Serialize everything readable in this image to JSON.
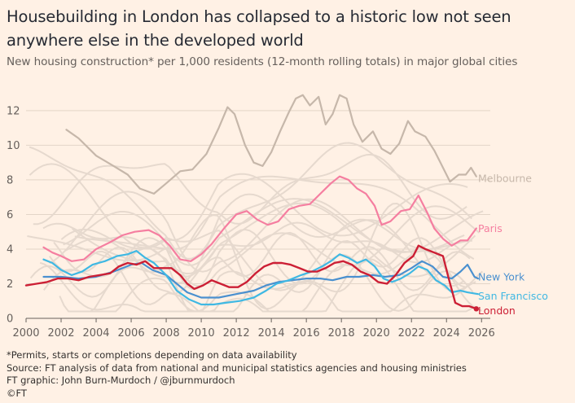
{
  "title": "Housebuilding in London has collapsed to a historic low not seen anywhere else in the developed world",
  "subtitle": "New housing construction* per 1,000 residents (12-month rolling totals) in major global cities",
  "footnotes": {
    "note": "*Permits, starts or completions depending on data availability",
    "source": "Source: FT analysis of data from national and municipal statistics agencies and housing ministries",
    "credit": "FT graphic: John Burn-Murdoch / @jburnmurdoch",
    "copyright": "©FT"
  },
  "colors": {
    "background": "#fff1e5",
    "other_cities": "#e6d9ce",
    "melbourne": "#c6b7aa",
    "paris": "#f57ea0",
    "new_york": "#4a90cf",
    "san_francisco": "#3fb8e3",
    "london": "#cc1f35"
  },
  "chart_data": {
    "type": "line",
    "ylim": [
      0,
      13.5
    ],
    "xlim": [
      2000,
      2026.5
    ],
    "y_ticks": [
      "0",
      "2",
      "4",
      "6",
      "8",
      "10",
      "12"
    ],
    "x_ticks": [
      "2000",
      "2002",
      "2004",
      "2006",
      "2008",
      "2010",
      "2012",
      "2014",
      "2016",
      "2018",
      "2020",
      "2022",
      "2024",
      "2026"
    ],
    "grid": "horizontal",
    "series": [
      {
        "name": "Melbourne",
        "color": "#c6b7aa",
        "width": 2.2,
        "points": [
          [
            2002.3,
            10.9
          ],
          [
            2003,
            10.4
          ],
          [
            2004,
            9.4
          ],
          [
            2005,
            8.8
          ],
          [
            2005.8,
            8.3
          ],
          [
            2006.5,
            7.5
          ],
          [
            2007.3,
            7.2
          ],
          [
            2008,
            7.8
          ],
          [
            2008.8,
            8.5
          ],
          [
            2009.5,
            8.6
          ],
          [
            2010.3,
            9.5
          ],
          [
            2011,
            11.0
          ],
          [
            2011.5,
            12.2
          ],
          [
            2011.9,
            11.8
          ],
          [
            2012.5,
            10.0
          ],
          [
            2013,
            9.0
          ],
          [
            2013.5,
            8.8
          ],
          [
            2014,
            9.6
          ],
          [
            2014.5,
            10.8
          ],
          [
            2015,
            11.9
          ],
          [
            2015.4,
            12.7
          ],
          [
            2015.8,
            12.9
          ],
          [
            2016.2,
            12.3
          ],
          [
            2016.7,
            12.8
          ],
          [
            2017.1,
            11.2
          ],
          [
            2017.5,
            11.8
          ],
          [
            2017.9,
            12.9
          ],
          [
            2018.3,
            12.7
          ],
          [
            2018.7,
            11.2
          ],
          [
            2019.2,
            10.2
          ],
          [
            2019.8,
            10.8
          ],
          [
            2020.3,
            9.8
          ],
          [
            2020.8,
            9.5
          ],
          [
            2021.3,
            10.1
          ],
          [
            2021.8,
            11.4
          ],
          [
            2022.2,
            10.8
          ],
          [
            2022.8,
            10.5
          ],
          [
            2023.3,
            9.7
          ],
          [
            2023.7,
            8.9
          ],
          [
            2024.2,
            7.9
          ],
          [
            2024.7,
            8.3
          ],
          [
            2025.1,
            8.3
          ],
          [
            2025.4,
            8.7
          ],
          [
            2025.7,
            8.2
          ]
        ]
      },
      {
        "name": "Paris",
        "color": "#f57ea0",
        "width": 2.2,
        "points": [
          [
            2001,
            4.1
          ],
          [
            2001.5,
            3.8
          ],
          [
            2002,
            3.6
          ],
          [
            2002.6,
            3.3
          ],
          [
            2003.3,
            3.4
          ],
          [
            2004,
            4.0
          ],
          [
            2004.8,
            4.4
          ],
          [
            2005.5,
            4.8
          ],
          [
            2006.2,
            5.0
          ],
          [
            2007,
            5.1
          ],
          [
            2007.6,
            4.8
          ],
          [
            2008.2,
            4.2
          ],
          [
            2008.8,
            3.4
          ],
          [
            2009.4,
            3.3
          ],
          [
            2010,
            3.7
          ],
          [
            2010.6,
            4.3
          ],
          [
            2011.3,
            5.2
          ],
          [
            2012,
            6.0
          ],
          [
            2012.6,
            6.2
          ],
          [
            2013.2,
            5.7
          ],
          [
            2013.8,
            5.4
          ],
          [
            2014.4,
            5.6
          ],
          [
            2015,
            6.3
          ],
          [
            2015.6,
            6.5
          ],
          [
            2016.2,
            6.6
          ],
          [
            2016.8,
            7.2
          ],
          [
            2017.4,
            7.8
          ],
          [
            2017.9,
            8.2
          ],
          [
            2018.4,
            8.0
          ],
          [
            2018.9,
            7.5
          ],
          [
            2019.4,
            7.2
          ],
          [
            2019.9,
            6.5
          ],
          [
            2020.3,
            5.4
          ],
          [
            2020.8,
            5.6
          ],
          [
            2021.4,
            6.2
          ],
          [
            2021.9,
            6.3
          ],
          [
            2022.4,
            7.1
          ],
          [
            2022.9,
            6.1
          ],
          [
            2023.3,
            5.2
          ],
          [
            2023.8,
            4.6
          ],
          [
            2024.3,
            4.2
          ],
          [
            2024.8,
            4.5
          ],
          [
            2025.2,
            4.5
          ],
          [
            2025.7,
            5.2
          ]
        ]
      },
      {
        "name": "New York",
        "color": "#4a90cf",
        "width": 2.2,
        "points": [
          [
            2001,
            2.4
          ],
          [
            2002,
            2.4
          ],
          [
            2003,
            2.3
          ],
          [
            2004,
            2.4
          ],
          [
            2005,
            2.7
          ],
          [
            2006,
            3.1
          ],
          [
            2006.6,
            3.2
          ],
          [
            2007.2,
            2.8
          ],
          [
            2008,
            2.5
          ],
          [
            2008.6,
            2.0
          ],
          [
            2009.2,
            1.5
          ],
          [
            2010,
            1.2
          ],
          [
            2011,
            1.2
          ],
          [
            2012,
            1.4
          ],
          [
            2013,
            1.6
          ],
          [
            2013.7,
            1.9
          ],
          [
            2014.4,
            2.1
          ],
          [
            2015.2,
            2.2
          ],
          [
            2016,
            2.3
          ],
          [
            2016.8,
            2.3
          ],
          [
            2017.5,
            2.2
          ],
          [
            2018.3,
            2.4
          ],
          [
            2019,
            2.4
          ],
          [
            2019.8,
            2.5
          ],
          [
            2020.5,
            2.4
          ],
          [
            2021.3,
            2.5
          ],
          [
            2022,
            2.9
          ],
          [
            2022.6,
            3.3
          ],
          [
            2023.2,
            3.0
          ],
          [
            2023.8,
            2.4
          ],
          [
            2024.3,
            2.3
          ],
          [
            2024.8,
            2.7
          ],
          [
            2025.2,
            3.1
          ],
          [
            2025.6,
            2.4
          ],
          [
            2025.8,
            2.3
          ]
        ]
      },
      {
        "name": "San Francisco",
        "color": "#3fb8e3",
        "width": 2.2,
        "points": [
          [
            2001,
            3.4
          ],
          [
            2001.5,
            3.2
          ],
          [
            2002,
            2.8
          ],
          [
            2002.6,
            2.5
          ],
          [
            2003.2,
            2.7
          ],
          [
            2003.8,
            3.1
          ],
          [
            2004.5,
            3.3
          ],
          [
            2005.2,
            3.6
          ],
          [
            2005.8,
            3.7
          ],
          [
            2006.3,
            3.9
          ],
          [
            2006.8,
            3.5
          ],
          [
            2007.3,
            3.2
          ],
          [
            2008,
            2.5
          ],
          [
            2008.6,
            1.6
          ],
          [
            2009.3,
            1.1
          ],
          [
            2010,
            0.8
          ],
          [
            2010.7,
            0.8
          ],
          [
            2011.4,
            0.9
          ],
          [
            2012.2,
            1.0
          ],
          [
            2013,
            1.2
          ],
          [
            2013.7,
            1.6
          ],
          [
            2014.3,
            2.0
          ],
          [
            2015,
            2.2
          ],
          [
            2015.7,
            2.5
          ],
          [
            2016.3,
            2.7
          ],
          [
            2016.9,
            3.0
          ],
          [
            2017.4,
            3.3
          ],
          [
            2017.9,
            3.7
          ],
          [
            2018.4,
            3.5
          ],
          [
            2018.9,
            3.2
          ],
          [
            2019.4,
            3.4
          ],
          [
            2019.9,
            3.0
          ],
          [
            2020.4,
            2.3
          ],
          [
            2020.9,
            2.1
          ],
          [
            2021.4,
            2.3
          ],
          [
            2021.9,
            2.6
          ],
          [
            2022.4,
            3.0
          ],
          [
            2022.9,
            2.8
          ],
          [
            2023.4,
            2.2
          ],
          [
            2023.9,
            1.9
          ],
          [
            2024.3,
            1.5
          ],
          [
            2024.8,
            1.6
          ],
          [
            2025.2,
            1.5
          ],
          [
            2025.8,
            1.4
          ]
        ]
      },
      {
        "name": "London",
        "color": "#cc1f35",
        "width": 2.4,
        "points": [
          [
            2000,
            1.9
          ],
          [
            2000.6,
            2.0
          ],
          [
            2001.2,
            2.1
          ],
          [
            2001.8,
            2.3
          ],
          [
            2002.4,
            2.3
          ],
          [
            2003,
            2.2
          ],
          [
            2003.6,
            2.4
          ],
          [
            2004.2,
            2.5
          ],
          [
            2004.8,
            2.6
          ],
          [
            2005.3,
            3.0
          ],
          [
            2005.8,
            3.2
          ],
          [
            2006.3,
            3.1
          ],
          [
            2006.8,
            3.3
          ],
          [
            2007.3,
            2.9
          ],
          [
            2007.8,
            2.9
          ],
          [
            2008.3,
            2.9
          ],
          [
            2008.8,
            2.5
          ],
          [
            2009.2,
            2.0
          ],
          [
            2009.6,
            1.7
          ],
          [
            2010.1,
            1.9
          ],
          [
            2010.6,
            2.2
          ],
          [
            2011.1,
            2.0
          ],
          [
            2011.6,
            1.8
          ],
          [
            2012.1,
            1.8
          ],
          [
            2012.6,
            2.1
          ],
          [
            2013.1,
            2.6
          ],
          [
            2013.6,
            3.0
          ],
          [
            2014.1,
            3.2
          ],
          [
            2014.6,
            3.2
          ],
          [
            2015.1,
            3.1
          ],
          [
            2015.6,
            2.9
          ],
          [
            2016.1,
            2.7
          ],
          [
            2016.6,
            2.7
          ],
          [
            2017.1,
            2.9
          ],
          [
            2017.6,
            3.2
          ],
          [
            2018.1,
            3.3
          ],
          [
            2018.6,
            3.1
          ],
          [
            2019.1,
            2.7
          ],
          [
            2019.6,
            2.5
          ],
          [
            2020.1,
            2.1
          ],
          [
            2020.6,
            2.0
          ],
          [
            2021.1,
            2.5
          ],
          [
            2021.6,
            3.2
          ],
          [
            2022.1,
            3.6
          ],
          [
            2022.4,
            4.2
          ],
          [
            2022.8,
            4.0
          ],
          [
            2023.3,
            3.8
          ],
          [
            2023.8,
            3.6
          ],
          [
            2024.1,
            2.4
          ],
          [
            2024.5,
            0.9
          ],
          [
            2024.9,
            0.7
          ],
          [
            2025.3,
            0.7
          ],
          [
            2025.7,
            0.55
          ]
        ]
      }
    ],
    "background_series_count": 18,
    "labels": [
      {
        "text": "Melbourne",
        "series": "Melbourne",
        "y": 8.1
      },
      {
        "text": "Paris",
        "series": "Paris",
        "y": 5.2
      },
      {
        "text": "New York",
        "series": "New York",
        "y": 2.4
      },
      {
        "text": "San Francisco",
        "series": "San Francisco",
        "y": 1.3
      },
      {
        "text": "London",
        "series": "London",
        "y": 0.45
      }
    ]
  }
}
